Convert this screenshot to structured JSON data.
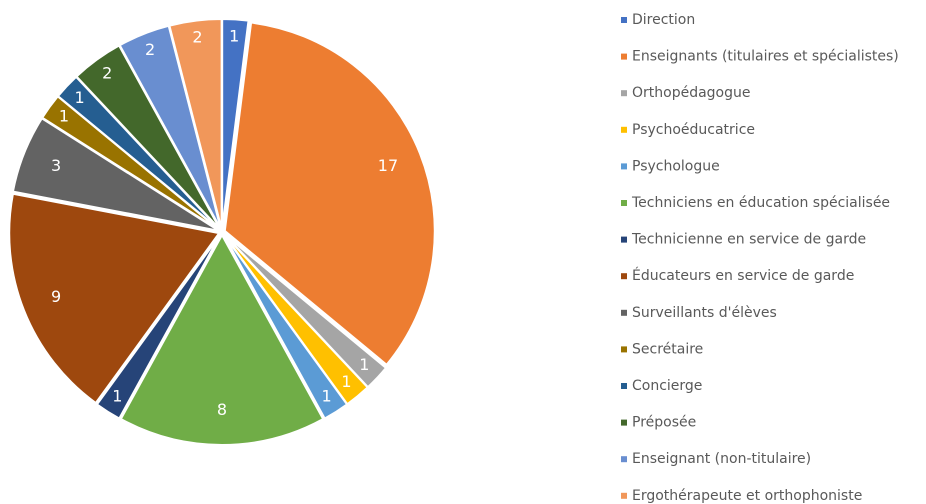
{
  "chart_data": {
    "type": "pie",
    "categories": [
      "Direction",
      "Enseignants (titulaires et spécialistes)",
      "Orthopédagogue",
      "Psychoéducatrice",
      "Psychologue",
      "Techniciens en éducation spécialisée",
      "Technicienne en service de garde",
      "Éducateurs en service de garde",
      "Surveillants d'élèves",
      "Secrétaire",
      "Concierge",
      "Préposée",
      "Enseignant (non-titulaire)",
      "Ergothérapeute et orthophoniste"
    ],
    "values": [
      1,
      17,
      1,
      1,
      1,
      8,
      1,
      9,
      3,
      1,
      1,
      2,
      2,
      2
    ],
    "colors": [
      "#4472c4",
      "#ed7d31",
      "#a5a5a5",
      "#ffc000",
      "#5b9bd5",
      "#70ad47",
      "#264478",
      "#9e480e",
      "#636363",
      "#997300",
      "#255e91",
      "#43682b",
      "#698ed0",
      "#f1975a"
    ],
    "legend": "right"
  }
}
